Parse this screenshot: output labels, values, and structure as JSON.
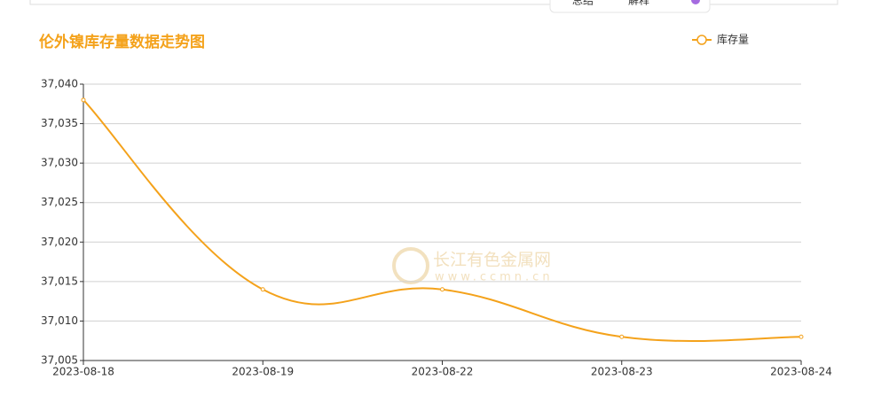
{
  "toolbar": {
    "items": [
      "总结",
      "解释"
    ]
  },
  "watermark": {
    "name": "长江有色金属网",
    "url": "www.ccmn.cn"
  },
  "chart_data": {
    "type": "line",
    "title": "伦外镍库存量数据走势图",
    "smooth": true,
    "categories": [
      "2023-08-18",
      "2023-08-19",
      "2023-08-22",
      "2023-08-23",
      "2023-08-24"
    ],
    "series": [
      {
        "name": "库存量",
        "color": "#f4a21b",
        "values": [
          37038,
          37014,
          37014,
          37008,
          37008
        ]
      }
    ],
    "ylim": [
      37005,
      37040
    ],
    "yticks": [
      {
        "value": 37005,
        "label": "37,005"
      },
      {
        "value": 37010,
        "label": "37,010"
      },
      {
        "value": 37015,
        "label": "37,015"
      },
      {
        "value": 37020,
        "label": "37,020"
      },
      {
        "value": 37025,
        "label": "37,025"
      },
      {
        "value": 37030,
        "label": "37,030"
      },
      {
        "value": 37035,
        "label": "37,035"
      },
      {
        "value": 37040,
        "label": "37,040"
      }
    ],
    "grid": true,
    "legend": "top-right"
  }
}
